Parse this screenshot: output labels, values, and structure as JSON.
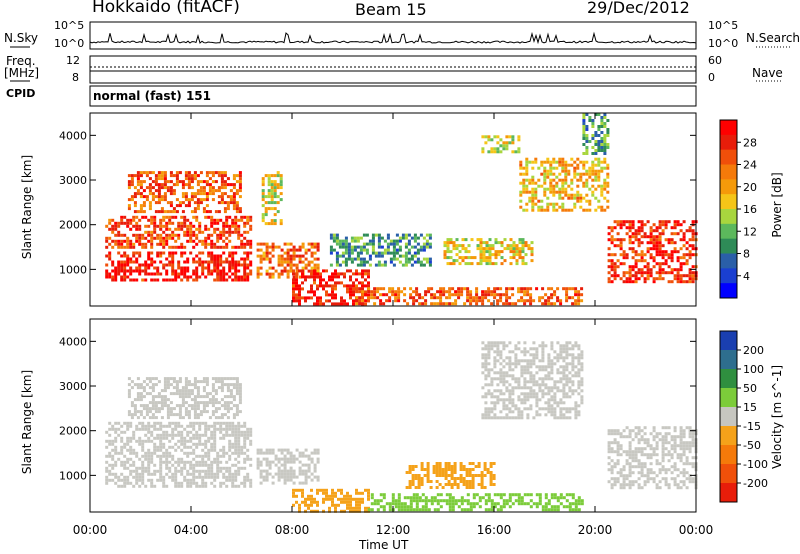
{
  "header": {
    "site": "Hokkaido (fitACF)",
    "beam": "Beam 15",
    "date": "29/Dec/2012"
  },
  "panels": {
    "nsky": {
      "label": "N.Sky",
      "tick_top": "10^5",
      "tick_bottom": "10^0"
    },
    "nsearch": {
      "label": "N.Search",
      "tick_top": "10^5",
      "tick_bottom": "10^0"
    },
    "freq": {
      "label_line1": "Freq.",
      "label_line2": "[MHz]",
      "tick_top": "12",
      "tick_bottom": "8"
    },
    "nave": {
      "label": "Nave",
      "tick_top": "60",
      "tick_bottom": "0"
    },
    "cpid": {
      "label": "CPID",
      "value": "normal (fast) 151"
    }
  },
  "chart_data": [
    {
      "type": "heatmap",
      "name": "power",
      "ylabel": "Slant Range [km]",
      "xlabel": "Time UT",
      "ylim": [
        180,
        4500
      ],
      "yticks": [
        "1000",
        "2000",
        "3000",
        "4000"
      ],
      "xticks": [
        "00:00",
        "04:00",
        "08:00",
        "12:00",
        "16:00",
        "20:00",
        "00:00"
      ],
      "xlim_hours": [
        0,
        24
      ],
      "colorbar": {
        "label": "Power [dB]",
        "ticks": [
          "4",
          "8",
          "12",
          "16",
          "20",
          "24",
          "28"
        ],
        "colors": [
          "#0000ff",
          "#1a3fd1",
          "#2a5fa8",
          "#2e8b57",
          "#5cb85c",
          "#a8d63e",
          "#f5c518",
          "#f59a0a",
          "#f57a0a",
          "#f04f0a",
          "#e81d0a",
          "#ff0000"
        ]
      },
      "echo_regions": [
        {
          "t": [
            0.6,
            6.4
          ],
          "r": [
            750,
            1400
          ],
          "v": 0.95
        },
        {
          "t": [
            0.6,
            6.4
          ],
          "r": [
            1500,
            2200
          ],
          "v": 0.85
        },
        {
          "t": [
            1.5,
            6.0
          ],
          "r": [
            2300,
            3200
          ],
          "v": 0.8
        },
        {
          "t": [
            6.8,
            7.6
          ],
          "r": [
            2000,
            3200
          ],
          "v": 0.5
        },
        {
          "t": [
            6.6,
            9.0
          ],
          "r": [
            800,
            1600
          ],
          "v": 0.75
        },
        {
          "t": [
            8.0,
            11.0
          ],
          "r": [
            200,
            1000
          ],
          "v": 0.95
        },
        {
          "t": [
            9.5,
            13.5
          ],
          "r": [
            1100,
            1800
          ],
          "v": 0.3
        },
        {
          "t": [
            10.5,
            19.5
          ],
          "r": [
            250,
            600
          ],
          "v": 0.8
        },
        {
          "t": [
            14.0,
            17.5
          ],
          "r": [
            1100,
            1700
          ],
          "v": 0.55
        },
        {
          "t": [
            15.5,
            17.0
          ],
          "r": [
            3600,
            4000
          ],
          "v": 0.5
        },
        {
          "t": [
            17.0,
            20.5
          ],
          "r": [
            2300,
            3500
          ],
          "v": 0.6
        },
        {
          "t": [
            19.5,
            20.5
          ],
          "r": [
            3600,
            4500
          ],
          "v": 0.3
        },
        {
          "t": [
            20.5,
            24.0
          ],
          "r": [
            700,
            2100
          ],
          "v": 0.9
        }
      ]
    },
    {
      "type": "heatmap",
      "name": "velocity",
      "ylabel": "Slant Range [km]",
      "xlabel": "Time UT",
      "ylim": [
        180,
        4500
      ],
      "yticks": [
        "1000",
        "2000",
        "3000",
        "4000"
      ],
      "xticks": [
        "00:00",
        "04:00",
        "08:00",
        "12:00",
        "16:00",
        "20:00",
        "00:00"
      ],
      "xlim_hours": [
        0,
        24
      ],
      "colorbar": {
        "label": "Velocity [m s^-1]",
        "ticks": [
          "200",
          "100",
          "50",
          "15",
          "-15",
          "-50",
          "-100",
          "-200"
        ],
        "colors": [
          "#1a3fb0",
          "#2e6e8e",
          "#2f8f3f",
          "#7ccc3a",
          "#c6c6c0",
          "#f5a21a",
          "#f57a0a",
          "#f0500a",
          "#e81d0a"
        ]
      },
      "echo_regions": [
        {
          "t": [
            0.6,
            6.4
          ],
          "r": [
            750,
            2200
          ],
          "c": "#c8c8c2"
        },
        {
          "t": [
            1.5,
            6.0
          ],
          "r": [
            2300,
            3200
          ],
          "c": "#c8c8c2"
        },
        {
          "t": [
            6.6,
            9.0
          ],
          "r": [
            800,
            1600
          ],
          "c": "#c8c8c2"
        },
        {
          "t": [
            8.0,
            11.0
          ],
          "r": [
            200,
            700
          ],
          "c": "#f5a21a"
        },
        {
          "t": [
            11.0,
            19.5
          ],
          "r": [
            250,
            600
          ],
          "c": "#7ccc3a"
        },
        {
          "t": [
            12.5,
            16.0
          ],
          "r": [
            700,
            1300
          ],
          "c": "#f5a21a"
        },
        {
          "t": [
            15.5,
            19.5
          ],
          "r": [
            2300,
            4000
          ],
          "c": "#c8c8c2"
        },
        {
          "t": [
            20.5,
            24.0
          ],
          "r": [
            700,
            2100
          ],
          "c": "#c8c8c2"
        }
      ]
    }
  ]
}
